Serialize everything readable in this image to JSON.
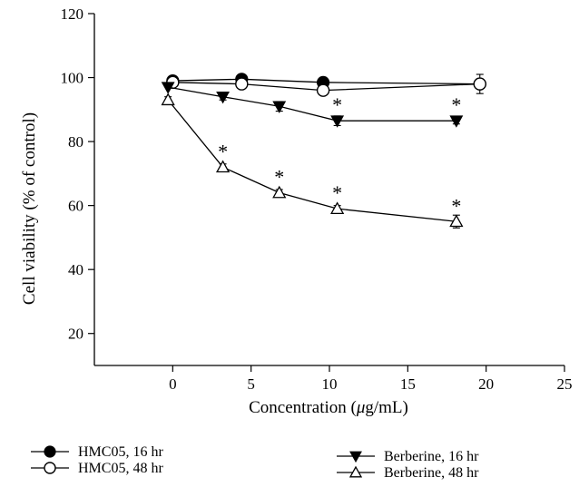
{
  "chart_data": {
    "type": "line",
    "xlabel_prefix": "Concentration (",
    "xlabel_mu": "μ",
    "xlabel_suffix": "g/mL)",
    "ylabel": "Cell viability (% of control)",
    "xlim": [
      -5,
      25
    ],
    "ylim": [
      10,
      120
    ],
    "xticks": [
      0,
      5,
      10,
      15,
      20,
      25
    ],
    "yticks": [
      20,
      40,
      60,
      80,
      100,
      120
    ],
    "grid": false,
    "legend_position": "bottom",
    "series": [
      {
        "name": "HMC05, 16 hr",
        "marker": "circle-filled",
        "x": [
          0,
          4.4,
          9.6,
          19.6
        ],
        "y": [
          99,
          99.5,
          98.5,
          98
        ],
        "err": [
          0,
          0,
          0,
          0
        ],
        "asterisks": []
      },
      {
        "name": "HMC05, 48 hr",
        "marker": "circle-open",
        "x": [
          0,
          4.4,
          9.6,
          19.6
        ],
        "y": [
          98.5,
          98,
          96,
          98
        ],
        "err": [
          0,
          0,
          0,
          3
        ],
        "asterisks": []
      },
      {
        "name": "Berberine, 16 hr",
        "marker": "triangle-down-filled",
        "x": [
          -0.3,
          3.2,
          6.8,
          10.5,
          18.1
        ],
        "y": [
          97,
          94,
          91,
          86.5,
          86.5
        ],
        "err": [
          0,
          1,
          1.5,
          1.5,
          1
        ],
        "asterisks": [
          false,
          false,
          false,
          true,
          true
        ]
      },
      {
        "name": "Berberine, 48 hr",
        "marker": "triangle-up-open",
        "x": [
          -0.3,
          3.2,
          6.8,
          10.5,
          18.1
        ],
        "y": [
          93,
          72,
          64,
          59,
          55
        ],
        "err": [
          1,
          1,
          1,
          1,
          2
        ],
        "asterisks": [
          false,
          true,
          true,
          true,
          true
        ]
      }
    ],
    "asterisk_symbol": "*"
  }
}
